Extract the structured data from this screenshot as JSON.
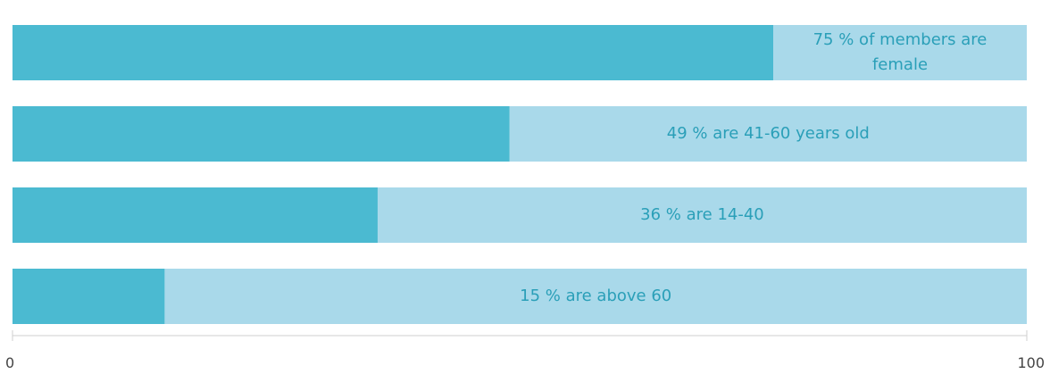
{
  "chart_data": {
    "type": "bar",
    "orientation": "horizontal",
    "stacked_to_total": true,
    "xlim": [
      0,
      100
    ],
    "title": "",
    "xlabel": "",
    "ylabel": "",
    "grid": false,
    "legend": "none",
    "x_ticks": [
      "0",
      "100"
    ],
    "series": [
      {
        "values": [
          75,
          49,
          36,
          15
        ],
        "color": "#4bbad1"
      },
      {
        "values": [
          25,
          51,
          64,
          85
        ],
        "color": "#a9d9ea"
      }
    ],
    "bars": [
      {
        "value": 75,
        "label_lines": [
          "75 % of members are",
          "female"
        ]
      },
      {
        "value": 49,
        "label_lines": [
          "49 % are 41-60 years old"
        ]
      },
      {
        "value": 36,
        "label_lines": [
          "36 % are 14-40"
        ]
      },
      {
        "value": 15,
        "label_lines": [
          "15 % are above 60"
        ]
      }
    ],
    "label_color": "#2a9fb8",
    "axis_color": "#cfcfcf"
  }
}
